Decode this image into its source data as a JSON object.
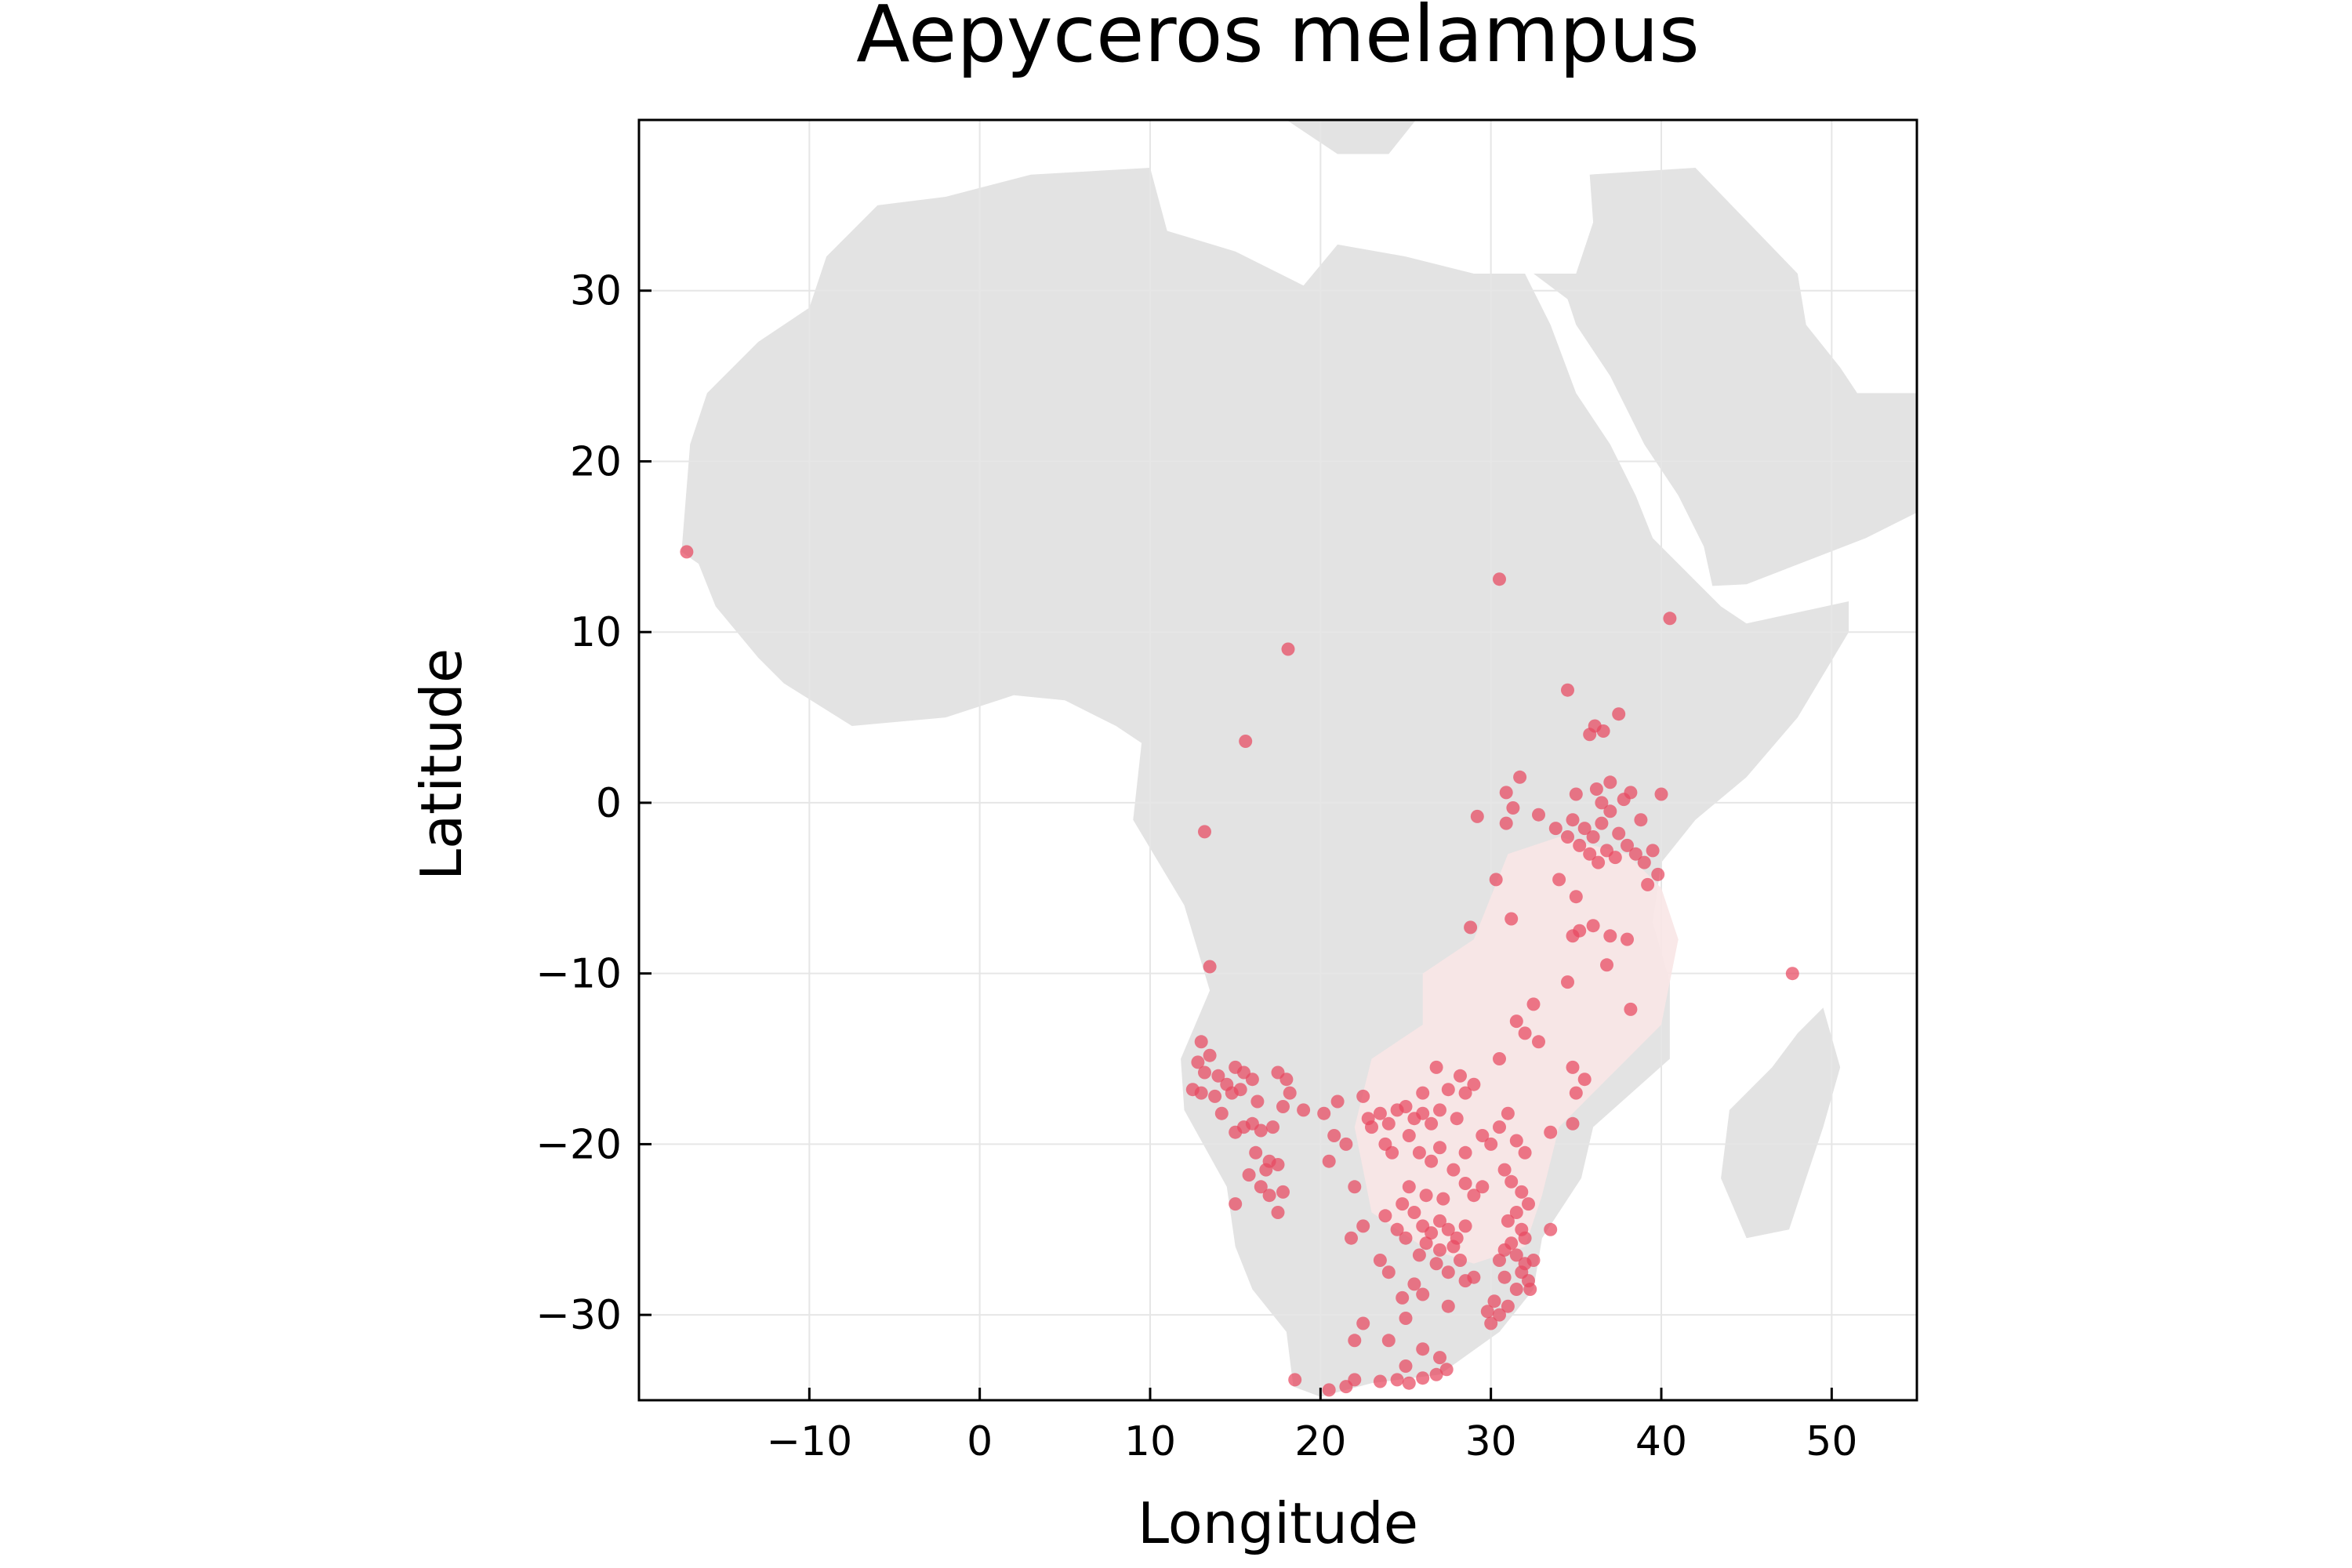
{
  "chart_data": {
    "type": "scatter",
    "title": "Aepyceros melampus",
    "xlabel": "Longitude",
    "ylabel": "Latitude",
    "xlim": [
      -20,
      55
    ],
    "ylim": [
      -35,
      40
    ],
    "xticks": [
      -10,
      0,
      10,
      20,
      30,
      40,
      50
    ],
    "yticks": [
      -30,
      -20,
      -10,
      0,
      10,
      20,
      30
    ],
    "xtick_labels": [
      "−10",
      "0",
      "10",
      "20",
      "30",
      "40",
      "50"
    ],
    "ytick_labels": [
      "−30",
      "−20",
      "−10",
      "0",
      "10",
      "20",
      "30"
    ],
    "grid": true,
    "colors": {
      "points": "#e8485f",
      "land": "#e3e3e3",
      "range": "#f8e5e5",
      "grid": "#e6e6e6"
    },
    "range_polygon": [
      [
        26,
        -10
      ],
      [
        29,
        -8
      ],
      [
        31,
        -3
      ],
      [
        34,
        -2
      ],
      [
        38,
        -3
      ],
      [
        40,
        -5
      ],
      [
        41,
        -8
      ],
      [
        40,
        -13
      ],
      [
        37,
        -16
      ],
      [
        34,
        -19
      ],
      [
        33,
        -23
      ],
      [
        32,
        -26
      ],
      [
        29,
        -27
      ],
      [
        26,
        -26
      ],
      [
        23,
        -24
      ],
      [
        22,
        -19
      ],
      [
        23,
        -15
      ],
      [
        26,
        -13
      ]
    ],
    "points": [
      [
        -17.2,
        14.7
      ],
      [
        30.5,
        13.1
      ],
      [
        18.1,
        9.0
      ],
      [
        15.6,
        3.6
      ],
      [
        13.2,
        -1.7
      ],
      [
        40.5,
        10.8
      ],
      [
        34.5,
        6.6
      ],
      [
        37.5,
        5.2
      ],
      [
        36.1,
        4.5
      ],
      [
        36.6,
        4.2
      ],
      [
        35.8,
        4.0
      ],
      [
        31.7,
        1.5
      ],
      [
        30.9,
        0.6
      ],
      [
        31.3,
        -0.3
      ],
      [
        32.8,
        -0.7
      ],
      [
        29.2,
        -0.8
      ],
      [
        30.9,
        -1.2
      ],
      [
        35.0,
        0.5
      ],
      [
        36.2,
        0.8
      ],
      [
        37.0,
        1.2
      ],
      [
        38.2,
        0.6
      ],
      [
        40.0,
        0.5
      ],
      [
        34.8,
        -1.0
      ],
      [
        35.5,
        -1.5
      ],
      [
        36.0,
        -2.0
      ],
      [
        36.5,
        -1.2
      ],
      [
        37.0,
        -0.5
      ],
      [
        37.5,
        -1.8
      ],
      [
        38.0,
        -2.5
      ],
      [
        38.5,
        -3.0
      ],
      [
        39.0,
        -3.5
      ],
      [
        39.5,
        -2.8
      ],
      [
        35.2,
        -2.5
      ],
      [
        35.8,
        -3.0
      ],
      [
        36.3,
        -3.5
      ],
      [
        36.8,
        -2.8
      ],
      [
        37.3,
        -3.2
      ],
      [
        34.5,
        -2.0
      ],
      [
        33.8,
        -1.5
      ],
      [
        36.5,
        0.0
      ],
      [
        37.8,
        0.2
      ],
      [
        38.8,
        -1.0
      ],
      [
        39.8,
        -4.2
      ],
      [
        39.2,
        -4.8
      ],
      [
        34.0,
        -4.5
      ],
      [
        35.0,
        -5.5
      ],
      [
        35.2,
        -7.5
      ],
      [
        34.8,
        -7.8
      ],
      [
        36.0,
        -7.2
      ],
      [
        37.0,
        -7.8
      ],
      [
        38.0,
        -8.0
      ],
      [
        36.8,
        -9.5
      ],
      [
        38.2,
        -12.1
      ],
      [
        34.5,
        -10.5
      ],
      [
        30.3,
        -4.5
      ],
      [
        31.2,
        -6.8
      ],
      [
        28.8,
        -7.3
      ],
      [
        32.5,
        -11.8
      ],
      [
        31.5,
        -12.8
      ],
      [
        32.0,
        -13.5
      ],
      [
        30.5,
        -15.0
      ],
      [
        32.8,
        -14.0
      ],
      [
        34.8,
        -15.5
      ],
      [
        35.0,
        -17.0
      ],
      [
        35.5,
        -16.2
      ],
      [
        34.8,
        -18.8
      ],
      [
        33.5,
        -19.3
      ],
      [
        13.5,
        -9.6
      ],
      [
        13.0,
        -14.0
      ],
      [
        13.5,
        -14.8
      ],
      [
        12.8,
        -15.2
      ],
      [
        13.2,
        -15.8
      ],
      [
        14.0,
        -16.0
      ],
      [
        14.5,
        -16.5
      ],
      [
        15.0,
        -15.5
      ],
      [
        15.5,
        -15.8
      ],
      [
        16.0,
        -16.2
      ],
      [
        12.5,
        -16.8
      ],
      [
        13.0,
        -17.0
      ],
      [
        13.8,
        -17.2
      ],
      [
        14.8,
        -17.0
      ],
      [
        15.3,
        -16.8
      ],
      [
        16.3,
        -17.5
      ],
      [
        17.5,
        -15.8
      ],
      [
        18.0,
        -16.2
      ],
      [
        18.2,
        -17.0
      ],
      [
        17.8,
        -17.8
      ],
      [
        14.2,
        -18.2
      ],
      [
        15.5,
        -19.0
      ],
      [
        16.0,
        -18.8
      ],
      [
        16.5,
        -19.2
      ],
      [
        17.2,
        -19.0
      ],
      [
        15.0,
        -19.3
      ],
      [
        16.2,
        -20.5
      ],
      [
        17.0,
        -21.0
      ],
      [
        16.8,
        -21.5
      ],
      [
        17.5,
        -21.2
      ],
      [
        15.8,
        -21.8
      ],
      [
        16.5,
        -22.5
      ],
      [
        17.0,
        -23.0
      ],
      [
        17.8,
        -22.8
      ],
      [
        15.0,
        -23.5
      ],
      [
        17.5,
        -24.0
      ],
      [
        19.0,
        -18.0
      ],
      [
        20.2,
        -18.2
      ],
      [
        21.0,
        -17.5
      ],
      [
        20.8,
        -19.5
      ],
      [
        20.5,
        -21.0
      ],
      [
        21.5,
        -20.0
      ],
      [
        22.0,
        -22.5
      ],
      [
        21.8,
        -25.5
      ],
      [
        22.5,
        -24.8
      ],
      [
        22.8,
        -18.5
      ],
      [
        23.0,
        -19.0
      ],
      [
        23.5,
        -18.2
      ],
      [
        24.0,
        -18.8
      ],
      [
        24.5,
        -18.0
      ],
      [
        25.0,
        -17.8
      ],
      [
        25.5,
        -18.5
      ],
      [
        26.0,
        -18.2
      ],
      [
        26.5,
        -18.8
      ],
      [
        27.0,
        -18.0
      ],
      [
        22.5,
        -17.2
      ],
      [
        23.8,
        -20.0
      ],
      [
        24.2,
        -20.5
      ],
      [
        25.2,
        -19.5
      ],
      [
        25.8,
        -20.5
      ],
      [
        26.5,
        -21.0
      ],
      [
        27.0,
        -20.2
      ],
      [
        28.0,
        -18.5
      ],
      [
        28.5,
        -17.0
      ],
      [
        29.0,
        -16.5
      ],
      [
        28.2,
        -16.0
      ],
      [
        27.5,
        -16.8
      ],
      [
        26.8,
        -15.5
      ],
      [
        26.0,
        -17.0
      ],
      [
        28.5,
        -20.5
      ],
      [
        29.5,
        -19.5
      ],
      [
        30.0,
        -20.0
      ],
      [
        30.5,
        -19.0
      ],
      [
        31.0,
        -18.2
      ],
      [
        31.5,
        -19.8
      ],
      [
        32.0,
        -20.5
      ],
      [
        27.8,
        -21.5
      ],
      [
        28.5,
        -22.3
      ],
      [
        29.0,
        -23.0
      ],
      [
        29.5,
        -22.5
      ],
      [
        30.8,
        -21.5
      ],
      [
        31.2,
        -22.2
      ],
      [
        31.8,
        -22.8
      ],
      [
        32.2,
        -23.5
      ],
      [
        31.5,
        -24.0
      ],
      [
        31.0,
        -24.5
      ],
      [
        31.8,
        -25.0
      ],
      [
        32.0,
        -25.5
      ],
      [
        31.2,
        -25.8
      ],
      [
        30.8,
        -26.2
      ],
      [
        31.5,
        -26.5
      ],
      [
        32.0,
        -27.0
      ],
      [
        31.8,
        -27.5
      ],
      [
        32.2,
        -28.0
      ],
      [
        31.5,
        -28.5
      ],
      [
        30.8,
        -27.8
      ],
      [
        30.5,
        -26.8
      ],
      [
        32.5,
        -26.8
      ],
      [
        32.3,
        -28.5
      ],
      [
        31.0,
        -29.5
      ],
      [
        30.5,
        -30.0
      ],
      [
        30.0,
        -30.5
      ],
      [
        29.8,
        -29.8
      ],
      [
        30.2,
        -29.2
      ],
      [
        25.5,
        -24.0
      ],
      [
        26.0,
        -24.8
      ],
      [
        26.5,
        -25.2
      ],
      [
        27.0,
        -24.5
      ],
      [
        27.5,
        -25.0
      ],
      [
        28.0,
        -25.5
      ],
      [
        28.5,
        -24.8
      ],
      [
        27.8,
        -26.0
      ],
      [
        27.0,
        -26.2
      ],
      [
        26.2,
        -25.8
      ],
      [
        25.8,
        -26.5
      ],
      [
        26.8,
        -27.0
      ],
      [
        28.2,
        -26.8
      ],
      [
        27.5,
        -27.5
      ],
      [
        25.0,
        -25.5
      ],
      [
        24.5,
        -25.0
      ],
      [
        23.8,
        -24.2
      ],
      [
        24.8,
        -23.5
      ],
      [
        25.2,
        -22.5
      ],
      [
        26.2,
        -23.0
      ],
      [
        27.2,
        -23.2
      ],
      [
        24.0,
        -27.5
      ],
      [
        23.5,
        -26.8
      ],
      [
        25.5,
        -28.2
      ],
      [
        26.0,
        -28.8
      ],
      [
        24.8,
        -29.0
      ],
      [
        27.5,
        -29.5
      ],
      [
        28.5,
        -28.0
      ],
      [
        22.5,
        -30.5
      ],
      [
        24.0,
        -31.5
      ],
      [
        26.0,
        -32.0
      ],
      [
        27.0,
        -32.5
      ],
      [
        25.0,
        -33.0
      ],
      [
        24.5,
        -33.8
      ],
      [
        25.2,
        -34.0
      ],
      [
        26.0,
        -33.7
      ],
      [
        26.8,
        -33.5
      ],
      [
        27.4,
        -33.2
      ],
      [
        22.0,
        -33.8
      ],
      [
        21.5,
        -34.2
      ],
      [
        20.5,
        -34.4
      ],
      [
        23.5,
        -33.9
      ],
      [
        18.5,
        -33.8
      ],
      [
        22.0,
        -31.5
      ],
      [
        47.7,
        -10.0
      ],
      [
        33.5,
        -25.0
      ],
      [
        29.0,
        -27.8
      ],
      [
        25.0,
        -30.2
      ]
    ]
  }
}
